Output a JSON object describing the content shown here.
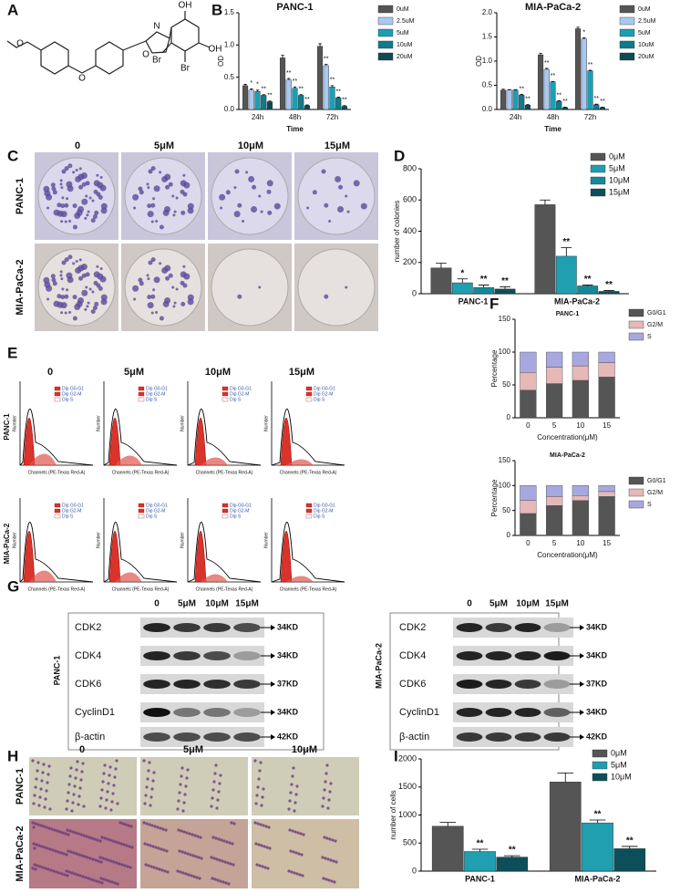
{
  "panel_labels": [
    "A",
    "B",
    "C",
    "D",
    "E",
    "F",
    "G",
    "H",
    "I"
  ],
  "structure_labels": [
    "O",
    "O",
    "N",
    "O",
    "OH",
    "OH",
    "Br",
    "Br"
  ],
  "colony_assay": {
    "columns": [
      "0",
      "5μM",
      "10μM",
      "15μM"
    ],
    "rows": [
      "PANC-1",
      "MIA-PaCa-2"
    ]
  },
  "flow_cytometry": {
    "columns": [
      "0",
      "5μM",
      "10μM",
      "15μM"
    ],
    "rows": [
      "PANC-1",
      "MIA-PaCa-2"
    ],
    "legend": [
      "Dip G0-G1",
      "Dip G2-M",
      "Dip S"
    ],
    "x_label": "Channels (PE-Texas Red-A)",
    "y_label": "Number"
  },
  "western_blot": {
    "left": {
      "cell_line": "PANC-1",
      "columns": [
        "0",
        "5μM",
        "10μM",
        "15μM"
      ],
      "proteins": [
        "CDK2",
        "CDK4",
        "CDK6",
        "CyclinD1",
        "β-actin"
      ],
      "sizes": [
        "34KD",
        "34KD",
        "37KD",
        "34KD",
        "42KD"
      ]
    },
    "right": {
      "cell_line": "MIA-PaCa-2",
      "columns": [
        "0",
        "5μM",
        "10μM",
        "15μM"
      ],
      "proteins": [
        "CDK2",
        "CDK4",
        "CDK6",
        "CyclinD1",
        "β-actin"
      ],
      "sizes": [
        "34KD",
        "34KD",
        "37KD",
        "34KD",
        "42KD"
      ]
    }
  },
  "transwell": {
    "columns": [
      "0",
      "5μM",
      "10μM"
    ],
    "rows": [
      "PANC-1",
      "MIA-PaCa-2"
    ]
  },
  "chart_data": [
    {
      "type": "bar",
      "title": "PANC-1",
      "x_label": "Time",
      "y_label": "OD",
      "categories": [
        "24h",
        "48h",
        "72h"
      ],
      "ylim": [
        0,
        1.5
      ],
      "yticks": [
        {
          "value": 0,
          "label": "0.0"
        },
        0.5,
        {
          "value": 1,
          "label": "1.0"
        },
        1.5
      ],
      "series": [
        {
          "name": "0uM",
          "color": "#555555",
          "values": [
            0.37,
            0.8,
            0.98
          ],
          "errors": [
            0.02,
            0.04,
            0.04
          ],
          "significance": [
            null,
            null,
            null
          ]
        },
        {
          "name": "2.5uM",
          "color": "#a9c8f0",
          "values": [
            0.3,
            0.46,
            0.68
          ],
          "errors": [
            0.02,
            0.02,
            0.02
          ],
          "significance": [
            "*",
            "**",
            "**"
          ]
        },
        {
          "name": "5uM",
          "color": "#1a9fb5",
          "values": [
            0.28,
            0.33,
            0.35
          ],
          "errors": [
            0.02,
            0.02,
            0.02
          ],
          "significance": [
            "*",
            "**",
            "**"
          ]
        },
        {
          "name": "10uM",
          "color": "#117a8b",
          "values": [
            0.22,
            0.22,
            0.18
          ],
          "errors": [
            0.01,
            0.01,
            0.01
          ],
          "significance": [
            "**",
            "**",
            "**"
          ]
        },
        {
          "name": "20uM",
          "color": "#0d4a55",
          "values": [
            0.12,
            0.06,
            0.05
          ],
          "errors": [
            0.01,
            0.01,
            0.01
          ],
          "significance": [
            "**",
            "**",
            "**"
          ]
        }
      ]
    },
    {
      "type": "bar",
      "title": "MIA-PaCa-2",
      "x_label": "Time",
      "y_label": "OD",
      "categories": [
        "24h",
        "48h",
        "72h"
      ],
      "ylim": [
        0,
        2
      ],
      "yticks": [
        {
          "value": 0,
          "label": "0.0"
        },
        0.5,
        {
          "value": 1,
          "label": "1.0"
        },
        1.5,
        {
          "value": 2,
          "label": "2.0"
        }
      ],
      "series": [
        {
          "name": "0uM",
          "color": "#555555",
          "values": [
            0.4,
            1.13,
            1.67
          ],
          "errors": [
            0.02,
            0.03,
            0.03
          ],
          "significance": [
            null,
            null,
            null
          ]
        },
        {
          "name": "2.5uM",
          "color": "#a9c8f0",
          "values": [
            0.4,
            0.83,
            1.46
          ],
          "errors": [
            0.01,
            0.02,
            0.02
          ],
          "significance": [
            null,
            "**",
            "*"
          ]
        },
        {
          "name": "5uM",
          "color": "#1a9fb5",
          "values": [
            0.4,
            0.57,
            0.8
          ],
          "errors": [
            0.01,
            0.01,
            0.01
          ],
          "significance": [
            null,
            "**",
            "**"
          ]
        },
        {
          "name": "10uM",
          "color": "#117a8b",
          "values": [
            0.3,
            0.17,
            0.1
          ],
          "errors": [
            0.01,
            0.01,
            0.01
          ],
          "significance": [
            "**",
            "**",
            "**"
          ]
        },
        {
          "name": "20uM",
          "color": "#0d4a55",
          "values": [
            0.09,
            0.04,
            0.04
          ],
          "errors": [
            0.01,
            0.01,
            0.01
          ],
          "significance": [
            "**",
            "**",
            "**"
          ]
        }
      ]
    },
    {
      "type": "bar",
      "y_label": "number of colonies",
      "categories": [
        "PANC-1",
        "MIA-PaCa-2"
      ],
      "ylim": [
        0,
        800
      ],
      "yticks": [
        0,
        200,
        400,
        600,
        800
      ],
      "series": [
        {
          "name": "0μM",
          "color": "#555555",
          "values": [
            165,
            570
          ],
          "errors": [
            30,
            30
          ],
          "significance": [
            null,
            null
          ]
        },
        {
          "name": "5μM",
          "color": "#1f9fb0",
          "values": [
            70,
            240
          ],
          "errors": [
            25,
            55
          ],
          "significance": [
            "*",
            "**"
          ]
        },
        {
          "name": "10μM",
          "color": "#138a9a",
          "values": [
            40,
            50
          ],
          "errors": [
            15,
            5
          ],
          "significance": [
            "**",
            "**"
          ]
        },
        {
          "name": "15μM",
          "color": "#0c4f5a",
          "values": [
            30,
            15
          ],
          "errors": [
            15,
            5
          ],
          "significance": [
            "**",
            "**"
          ]
        }
      ]
    },
    {
      "type": "stacked_bar",
      "title": "PANC-1",
      "x_label": "Concentration(μM)",
      "y_label": "Percentage",
      "categories": [
        "0",
        "5",
        "10",
        "15"
      ],
      "ylim": [
        0,
        150
      ],
      "yticks": [
        0,
        50,
        100,
        150
      ],
      "series": [
        {
          "name": "G0/G1",
          "color": "#555555",
          "values": [
            42,
            52,
            57,
            62
          ]
        },
        {
          "name": "G2/M",
          "color": "#e6b8b8",
          "values": [
            27,
            25,
            22,
            22
          ]
        },
        {
          "name": "S",
          "color": "#a8a8e0",
          "values": [
            31,
            23,
            21,
            16
          ]
        }
      ]
    },
    {
      "type": "stacked_bar",
      "title": "MIA-PaCa-2",
      "x_label": "Concentration(μM)",
      "y_label": "Percentage",
      "categories": [
        "0",
        "5",
        "10",
        "15"
      ],
      "ylim": [
        0,
        150
      ],
      "yticks": [
        0,
        50,
        100,
        150
      ],
      "series": [
        {
          "name": "G0/G1",
          "color": "#555555",
          "values": [
            44,
            60,
            70,
            78
          ]
        },
        {
          "name": "G2/M",
          "color": "#e6b8b8",
          "values": [
            26,
            18,
            10,
            10
          ]
        },
        {
          "name": "S",
          "color": "#a8a8e0",
          "values": [
            30,
            22,
            20,
            12
          ]
        }
      ]
    },
    {
      "type": "bar",
      "y_label": "number of cells",
      "categories": [
        "PANC-1",
        "MIA-PaCa-2"
      ],
      "ylim": [
        0,
        2000
      ],
      "yticks": [
        0,
        500,
        1000,
        1500,
        2000
      ],
      "series": [
        {
          "name": "0μM",
          "color": "#555555",
          "values": [
            800,
            1590
          ],
          "errors": [
            70,
            160
          ],
          "significance": [
            null,
            null
          ]
        },
        {
          "name": "5μM",
          "color": "#1f9fb0",
          "values": [
            350,
            860
          ],
          "errors": [
            40,
            50
          ],
          "significance": [
            "**",
            "**"
          ]
        },
        {
          "name": "10μM",
          "color": "#0c4f5a",
          "values": [
            250,
            400
          ],
          "errors": [
            25,
            40
          ],
          "significance": [
            "**",
            "**"
          ]
        }
      ]
    }
  ]
}
